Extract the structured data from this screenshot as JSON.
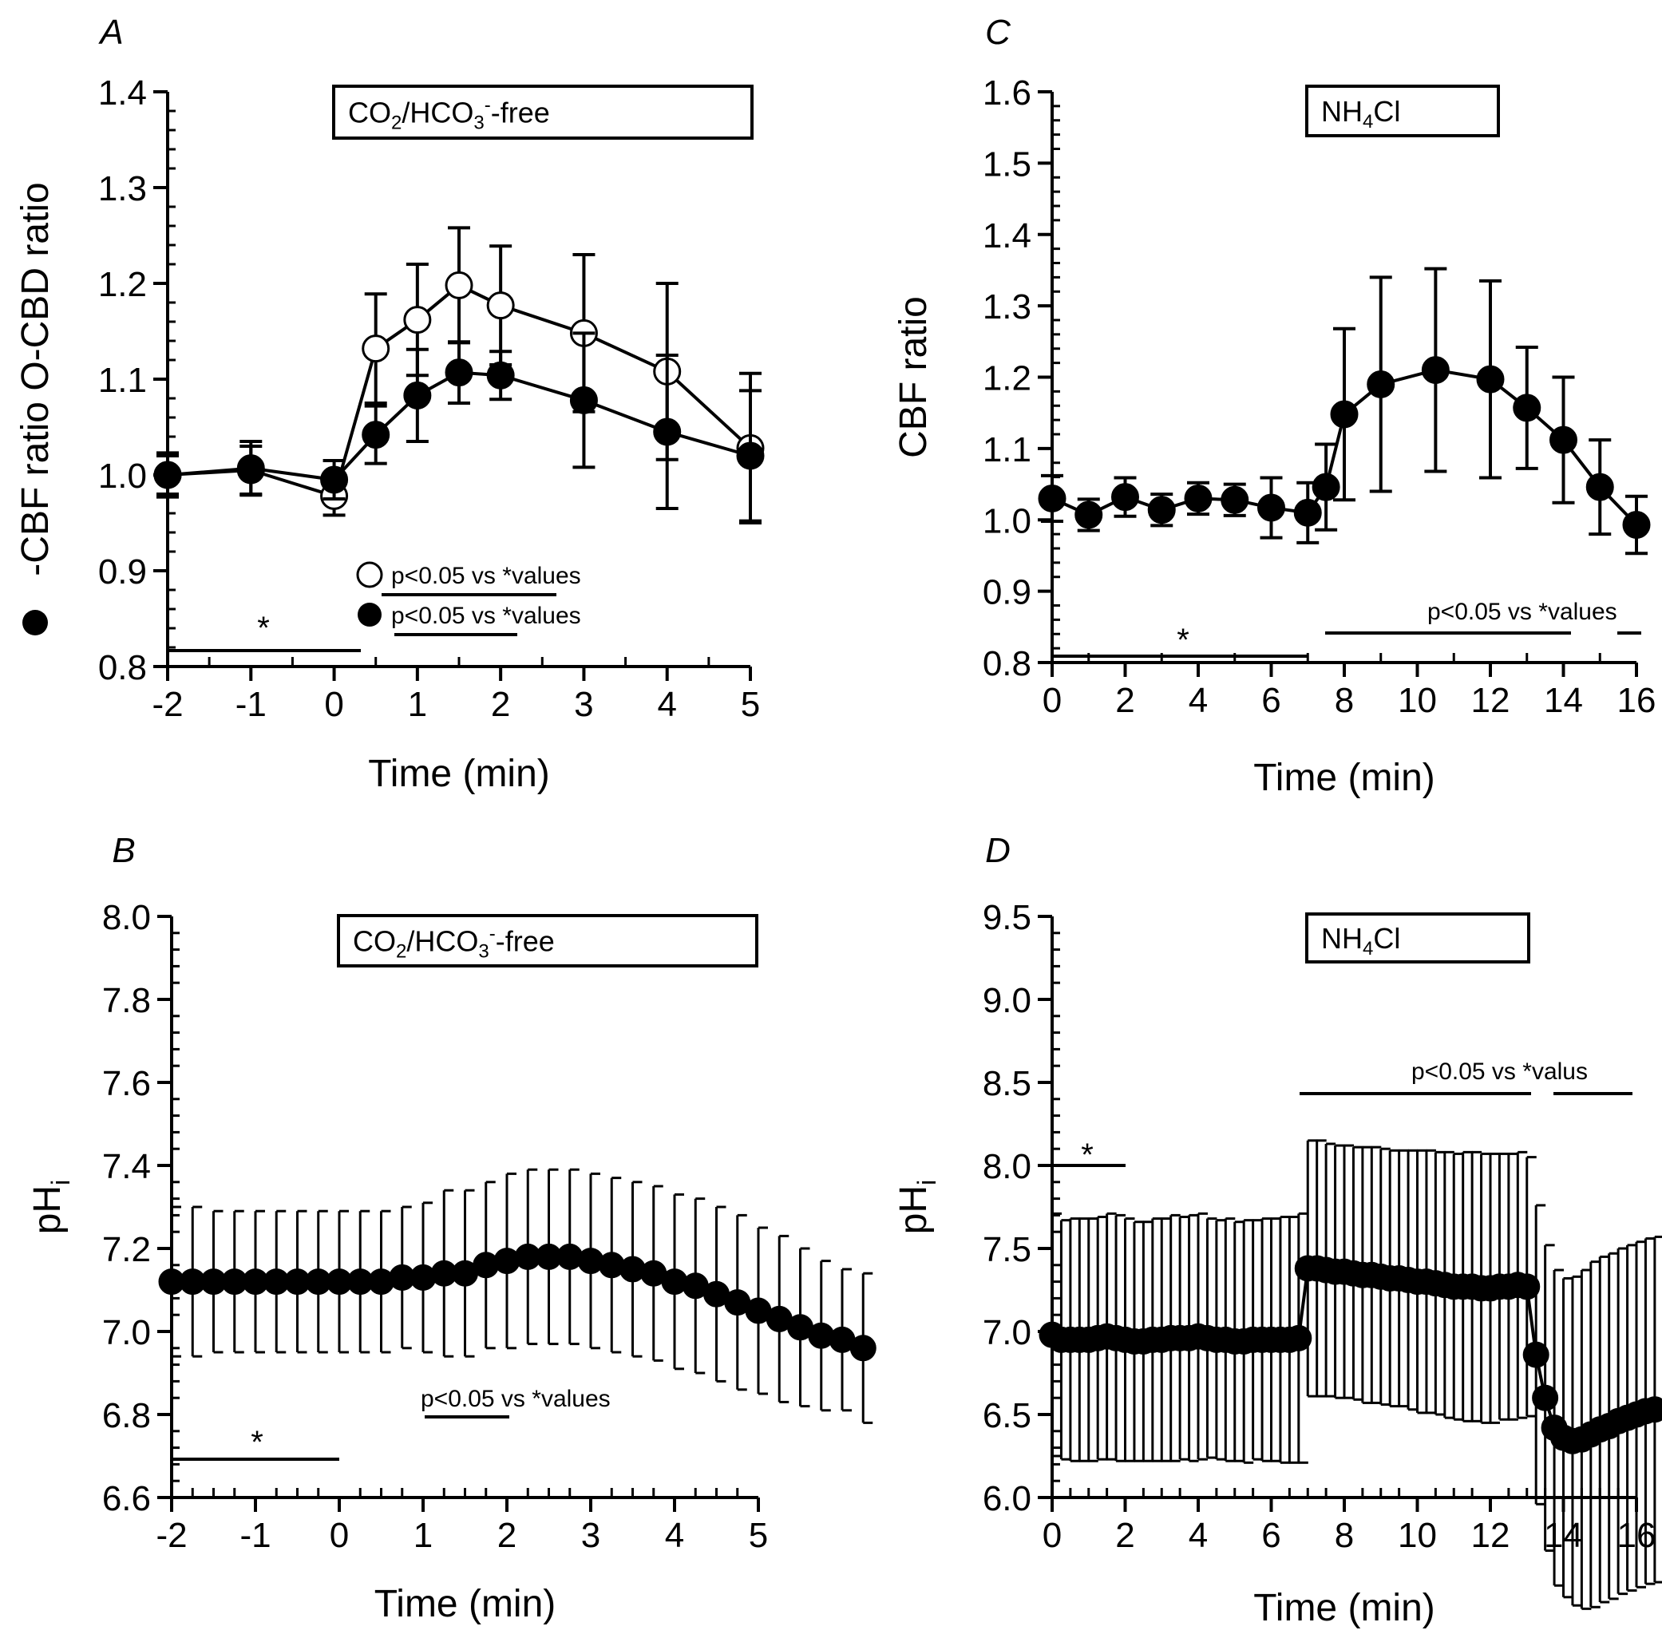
{
  "chart_data": [
    {
      "panel": "A",
      "type": "line",
      "xlabel": "Time (min)",
      "ylabel": "-CBF ratio O-CBD ratio",
      "ylabel_markers": {
        "filled": "●",
        "open": "O"
      },
      "xlim": [
        -2,
        5
      ],
      "ylim": [
        0.8,
        1.4
      ],
      "xticks": [
        -2,
        -1,
        0,
        1,
        2,
        3,
        4,
        5
      ],
      "xtick_labels": [
        "-2",
        "-1",
        "0",
        "1",
        "2",
        "3",
        "4",
        "5"
      ],
      "yticks": [
        0.8,
        0.9,
        1.0,
        1.1,
        1.2,
        1.3,
        1.4
      ],
      "ytick_labels": [
        "0.8",
        "0.9",
        "1.0",
        "1.1",
        "1.2",
        "1.3",
        "1.4"
      ],
      "box": {
        "text": "CO",
        "sub": "2",
        "mid": "/HCO",
        "sub2": "3",
        "sup": "-",
        "tail": "-free"
      },
      "series": [
        {
          "marker": "open",
          "x": [
            -2,
            -1,
            0,
            0.5,
            1,
            1.5,
            2,
            3,
            4,
            5
          ],
          "y": [
            1.0,
            1.005,
            0.978,
            1.132,
            1.162,
            1.198,
            1.177,
            1.148,
            1.108,
            1.028
          ],
          "err": [
            0.02,
            0.025,
            0.02,
            0.057,
            0.058,
            0.06,
            0.062,
            0.082,
            0.092,
            0.078
          ]
        },
        {
          "marker": "filled",
          "x": [
            -2,
            -1,
            0,
            0.5,
            1,
            1.5,
            2,
            3,
            4,
            5
          ],
          "y": [
            1.0,
            1.007,
            0.995,
            1.042,
            1.083,
            1.107,
            1.104,
            1.078,
            1.045,
            1.02
          ],
          "err": [
            0.023,
            0.028,
            0.02,
            0.03,
            0.048,
            0.032,
            0.025,
            0.07,
            0.08,
            0.068
          ]
        }
      ],
      "annotations": [
        {
          "text": "p<0.05 vs *values",
          "marker": "open"
        },
        {
          "text": "p<0.05 vs *values",
          "marker": "filled"
        },
        {
          "text": "*"
        }
      ]
    },
    {
      "panel": "B",
      "type": "line",
      "xlabel": "Time (min)",
      "ylabel": "pH",
      "ylabel_sub": "i",
      "xlim": [
        -2,
        5
      ],
      "ylim": [
        6.6,
        8.0
      ],
      "xticks": [
        -2,
        -1,
        0,
        1,
        2,
        3,
        4,
        5
      ],
      "xtick_labels": [
        "-2",
        "-1",
        "0",
        "1",
        "2",
        "3",
        "4",
        "5"
      ],
      "yticks": [
        6.6,
        6.8,
        7.0,
        7.2,
        7.4,
        7.6,
        7.8,
        8.0
      ],
      "ytick_labels": [
        "6.6",
        "6.8",
        "7.0",
        "7.2",
        "7.4",
        "7.6",
        "7.8",
        "8.0"
      ],
      "box": {
        "text": "CO",
        "sub": "2",
        "mid": "/HCO",
        "sub2": "3",
        "sup": "-",
        "tail": "-free"
      },
      "series": [
        {
          "marker": "filled",
          "x_start": -2,
          "x_step": 0.25,
          "y": [
            7.12,
            7.12,
            7.12,
            7.12,
            7.12,
            7.12,
            7.12,
            7.12,
            7.12,
            7.12,
            7.12,
            7.13,
            7.13,
            7.14,
            7.14,
            7.16,
            7.17,
            7.18,
            7.18,
            7.18,
            7.17,
            7.16,
            7.15,
            7.14,
            7.12,
            7.11,
            7.09,
            7.07,
            7.05,
            7.03,
            7.01,
            6.99,
            6.98,
            6.96
          ],
          "err": [
            0.18,
            0.18,
            0.17,
            0.17,
            0.17,
            0.17,
            0.17,
            0.17,
            0.17,
            0.17,
            0.17,
            0.17,
            0.18,
            0.2,
            0.2,
            0.2,
            0.21,
            0.21,
            0.21,
            0.21,
            0.21,
            0.21,
            0.21,
            0.21,
            0.21,
            0.21,
            0.21,
            0.21,
            0.2,
            0.2,
            0.19,
            0.18,
            0.17,
            0.18
          ]
        }
      ],
      "annotations": [
        {
          "text": "p<0.05 vs *values"
        },
        {
          "text": "*"
        }
      ]
    },
    {
      "panel": "C",
      "type": "line",
      "xlabel": "Time (min)",
      "ylabel": "CBF ratio",
      "xlim": [
        0,
        16
      ],
      "ylim": [
        0.8,
        1.6
      ],
      "xticks": [
        0,
        2,
        4,
        6,
        8,
        10,
        12,
        14,
        16
      ],
      "xtick_labels": [
        "0",
        "2",
        "4",
        "6",
        "8",
        "10",
        "12",
        "14",
        "16"
      ],
      "yticks": [
        0.8,
        0.9,
        1.0,
        1.1,
        1.2,
        1.3,
        1.4,
        1.5,
        1.6
      ],
      "ytick_labels": [
        "0.8",
        "0.9",
        "1.0",
        "1.1",
        "1.2",
        "1.3",
        "1.4",
        "1.5",
        "1.6"
      ],
      "box": {
        "text": "NH",
        "sub": "4",
        "mid": "Cl"
      },
      "series": [
        {
          "marker": "filled",
          "x": [
            0,
            1,
            2,
            3,
            4,
            5,
            6,
            7,
            7.5,
            8,
            9,
            10.5,
            12,
            13,
            14,
            15,
            16
          ],
          "y": [
            1.03,
            1.007,
            1.032,
            1.014,
            1.03,
            1.028,
            1.017,
            1.01,
            1.046,
            1.148,
            1.19,
            1.21,
            1.197,
            1.157,
            1.112,
            1.046,
            0.993
          ],
          "err": [
            0.032,
            0.022,
            0.027,
            0.022,
            0.022,
            0.022,
            0.042,
            0.042,
            0.06,
            0.12,
            0.15,
            0.142,
            0.138,
            0.085,
            0.088,
            0.066,
            0.04
          ]
        }
      ],
      "annotations": [
        {
          "text": "p<0.05 vs *values"
        },
        {
          "text": "*"
        }
      ]
    },
    {
      "panel": "D",
      "type": "line",
      "xlabel": "Time (min)",
      "ylabel": "pH",
      "ylabel_sub": "i",
      "xlim": [
        0,
        16
      ],
      "ylim": [
        6.0,
        9.5
      ],
      "xticks": [
        0,
        2,
        4,
        6,
        8,
        10,
        12,
        14,
        16
      ],
      "xtick_labels": [
        "0",
        "2",
        "4",
        "6",
        "8",
        "10",
        "12",
        "14",
        "16"
      ],
      "yticks": [
        6.0,
        6.5,
        7.0,
        7.5,
        8.0,
        8.5,
        9.0,
        9.5
      ],
      "ytick_labels": [
        "6.0",
        "6.5",
        "7.0",
        "7.5",
        "8.0",
        "8.5",
        "9.0",
        "9.5"
      ],
      "box": {
        "text": "NH",
        "sub": "4",
        "mid": "Cl"
      },
      "series": [
        {
          "marker": "filled",
          "x_start": 0,
          "x_step": 0.25,
          "y": [
            6.98,
            6.95,
            6.95,
            6.95,
            6.95,
            6.96,
            6.97,
            6.96,
            6.95,
            6.94,
            6.94,
            6.95,
            6.95,
            6.96,
            6.96,
            6.96,
            6.97,
            6.96,
            6.95,
            6.95,
            6.94,
            6.94,
            6.95,
            6.95,
            6.95,
            6.95,
            6.95,
            6.96,
            7.38,
            7.38,
            7.37,
            7.36,
            7.36,
            7.35,
            7.34,
            7.34,
            7.33,
            7.32,
            7.32,
            7.31,
            7.3,
            7.3,
            7.29,
            7.28,
            7.27,
            7.27,
            7.27,
            7.26,
            7.26,
            7.27,
            7.27,
            7.28,
            7.27,
            6.86,
            6.6,
            6.42,
            6.36,
            6.34,
            6.35,
            6.38,
            6.41,
            6.43,
            6.46,
            6.48,
            6.5,
            6.52,
            6.53
          ],
          "err": [
            0.73,
            0.72,
            0.73,
            0.73,
            0.73,
            0.73,
            0.74,
            0.74,
            0.73,
            0.72,
            0.72,
            0.73,
            0.73,
            0.74,
            0.73,
            0.74,
            0.74,
            0.72,
            0.72,
            0.73,
            0.72,
            0.73,
            0.72,
            0.73,
            0.73,
            0.74,
            0.74,
            0.75,
            0.77,
            0.77,
            0.76,
            0.76,
            0.76,
            0.76,
            0.77,
            0.77,
            0.77,
            0.77,
            0.77,
            0.78,
            0.79,
            0.79,
            0.79,
            0.8,
            0.8,
            0.81,
            0.81,
            0.81,
            0.81,
            0.8,
            0.8,
            0.8,
            0.78,
            0.9,
            0.92,
            0.95,
            0.96,
            0.99,
            1.02,
            1.04,
            1.04,
            1.04,
            1.04,
            1.04,
            1.04,
            1.04,
            1.04
          ]
        }
      ],
      "annotations": [
        {
          "text": "p<0.05 vs *valus"
        },
        {
          "text": "*"
        }
      ]
    }
  ]
}
